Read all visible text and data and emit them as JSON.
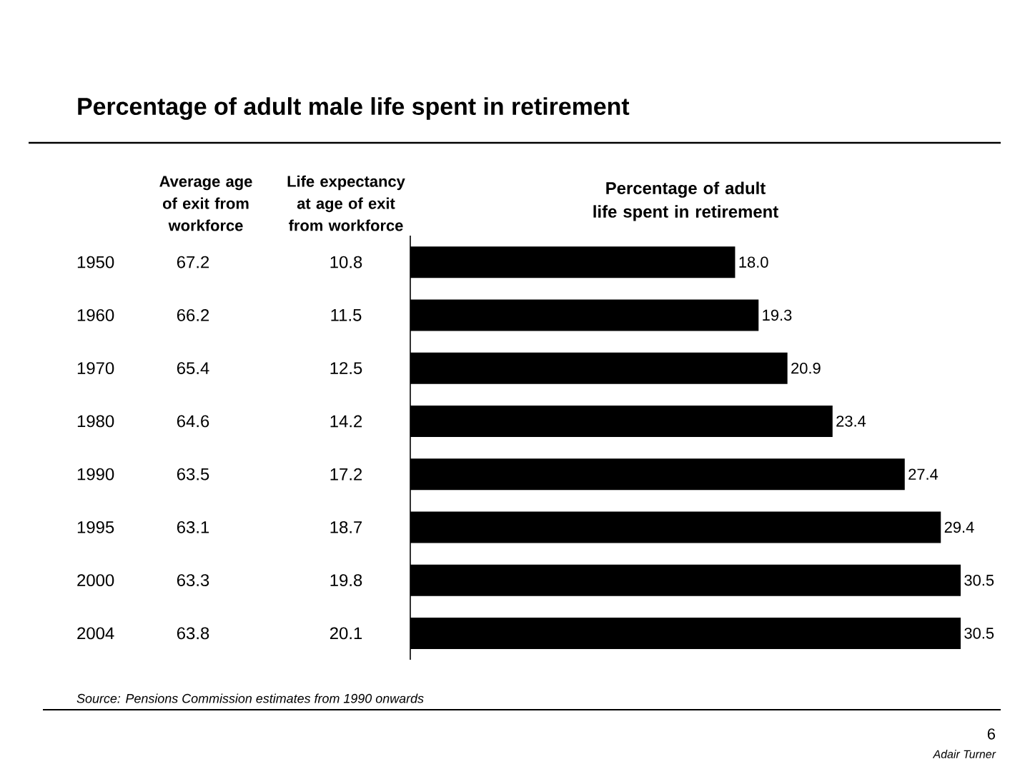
{
  "chart_data": {
    "type": "bar",
    "orientation": "horizontal",
    "title": "Percentage of adult male life spent in retirement",
    "xlabel": "Percentage of adult life spent in retirement",
    "categories": [
      "1950",
      "1960",
      "1970",
      "1980",
      "1990",
      "1995",
      "2000",
      "2004"
    ],
    "values": [
      18.0,
      19.3,
      20.9,
      23.4,
      27.4,
      29.4,
      30.5,
      30.5
    ],
    "value_labels": [
      "18.0",
      "19.3",
      "20.9",
      "23.4",
      "27.4",
      "29.4",
      "30.5",
      "30.5"
    ],
    "color": "#000000",
    "xlim": [
      0,
      30.5
    ],
    "annotations": [
      "Average age of exit from workforce",
      "Life expectancy at age of exit from workforce",
      "67.2",
      "66.2",
      "65.4",
      "64.6",
      "63.5",
      "63.1",
      "63.3",
      "63.8",
      "10.8",
      "11.5",
      "12.5",
      "14.2",
      "17.2",
      "18.7",
      "19.8",
      "20.1",
      "Source: Pensions Commission estimates from 1990 onwards",
      "6",
      "Adair Turner"
    ]
  }
}
